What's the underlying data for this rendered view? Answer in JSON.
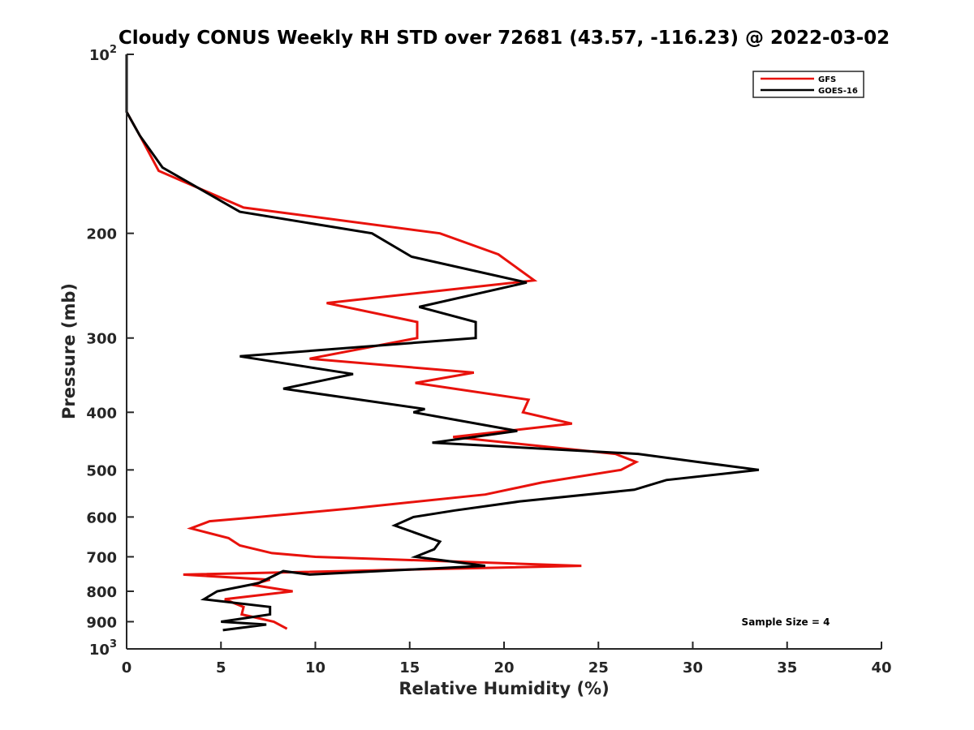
{
  "chart_data": {
    "type": "line",
    "orientation": "vertical-profile",
    "title": "Cloudy CONUS Weekly RH STD over 72681 (43.57, -116.23) @ 2022-03-02",
    "xlabel": "Relative Humidity (%)",
    "ylabel": "Pressure (mb)",
    "xlim": [
      0,
      40
    ],
    "ylim": [
      100,
      1000
    ],
    "y_scale": "log",
    "y_reversed": true,
    "grid": false,
    "legend_position": "top-right",
    "annotation": "Sample Size = 4",
    "x_ticks": [
      {
        "value": 0,
        "label": "0"
      },
      {
        "value": 5,
        "label": "5"
      },
      {
        "value": 10,
        "label": "10"
      },
      {
        "value": 15,
        "label": "15"
      },
      {
        "value": 20,
        "label": "20"
      },
      {
        "value": 25,
        "label": "25"
      },
      {
        "value": 30,
        "label": "30"
      },
      {
        "value": 35,
        "label": "35"
      },
      {
        "value": 40,
        "label": "40"
      }
    ],
    "y_ticks": [
      {
        "value": 100,
        "base": "10",
        "exp": "2"
      },
      {
        "value": 200,
        "base": "200",
        "exp": ""
      },
      {
        "value": 300,
        "base": "300",
        "exp": ""
      },
      {
        "value": 400,
        "base": "400",
        "exp": ""
      },
      {
        "value": 500,
        "base": "500",
        "exp": ""
      },
      {
        "value": 600,
        "base": "600",
        "exp": ""
      },
      {
        "value": 700,
        "base": "700",
        "exp": ""
      },
      {
        "value": 800,
        "base": "800",
        "exp": ""
      },
      {
        "value": 900,
        "base": "900",
        "exp": ""
      },
      {
        "value": 1000,
        "base": "10",
        "exp": "3"
      }
    ],
    "series": [
      {
        "name": "GFS",
        "color": "#e8120c",
        "points": [
          [
            0,
            100
          ],
          [
            0,
            125
          ],
          [
            0.7,
            137
          ],
          [
            1.7,
            157
          ],
          [
            6.2,
            181
          ],
          [
            16.6,
            200
          ],
          [
            19.7,
            217
          ],
          [
            21.6,
            240
          ],
          [
            10.6,
            262
          ],
          [
            15.4,
            282
          ],
          [
            15.4,
            300
          ],
          [
            9.7,
            325
          ],
          [
            18.4,
            343
          ],
          [
            15.3,
            357
          ],
          [
            21.3,
            381
          ],
          [
            21.0,
            400
          ],
          [
            23.6,
            418
          ],
          [
            17.3,
            440
          ],
          [
            25.9,
            470
          ],
          [
            27.0,
            485
          ],
          [
            26.2,
            500
          ],
          [
            22.0,
            525
          ],
          [
            19.0,
            550
          ],
          [
            12.0,
            580
          ],
          [
            7.0,
            600
          ],
          [
            4.4,
            610
          ],
          [
            3.4,
            627
          ],
          [
            5.4,
            651
          ],
          [
            6.0,
            670
          ],
          [
            7.7,
            690
          ],
          [
            10.0,
            700
          ],
          [
            24.1,
            725
          ],
          [
            3.0,
            750
          ],
          [
            7.6,
            765
          ],
          [
            6.6,
            780
          ],
          [
            8.8,
            800
          ],
          [
            5.2,
            825
          ],
          [
            6.2,
            850
          ],
          [
            6.1,
            875
          ],
          [
            7.8,
            900
          ],
          [
            8.5,
            925
          ]
        ]
      },
      {
        "name": "GOES-16",
        "color": "#000000",
        "points": [
          [
            0,
            100
          ],
          [
            0,
            125
          ],
          [
            0.7,
            137
          ],
          [
            1.9,
            155
          ],
          [
            6.0,
            184
          ],
          [
            13.0,
            200
          ],
          [
            15.1,
            219
          ],
          [
            21.2,
            242
          ],
          [
            15.5,
            266
          ],
          [
            18.5,
            282
          ],
          [
            18.5,
            300
          ],
          [
            6.0,
            322
          ],
          [
            12.0,
            345
          ],
          [
            8.3,
            365
          ],
          [
            15.8,
            395
          ],
          [
            15.2,
            400
          ],
          [
            20.7,
            430
          ],
          [
            16.2,
            450
          ],
          [
            27.1,
            470
          ],
          [
            30.3,
            485
          ],
          [
            33.5,
            500
          ],
          [
            28.6,
            520
          ],
          [
            26.9,
            540
          ],
          [
            20.8,
            565
          ],
          [
            17.4,
            585
          ],
          [
            15.2,
            600
          ],
          [
            14.2,
            620
          ],
          [
            16.6,
            660
          ],
          [
            16.3,
            680
          ],
          [
            15.3,
            700
          ],
          [
            19.0,
            725
          ],
          [
            9.7,
            750
          ],
          [
            8.3,
            740
          ],
          [
            7.0,
            775
          ],
          [
            4.8,
            800
          ],
          [
            4.1,
            825
          ],
          [
            7.6,
            850
          ],
          [
            7.6,
            875
          ],
          [
            5.0,
            900
          ],
          [
            7.4,
            910
          ],
          [
            5.1,
            930
          ]
        ]
      }
    ]
  }
}
